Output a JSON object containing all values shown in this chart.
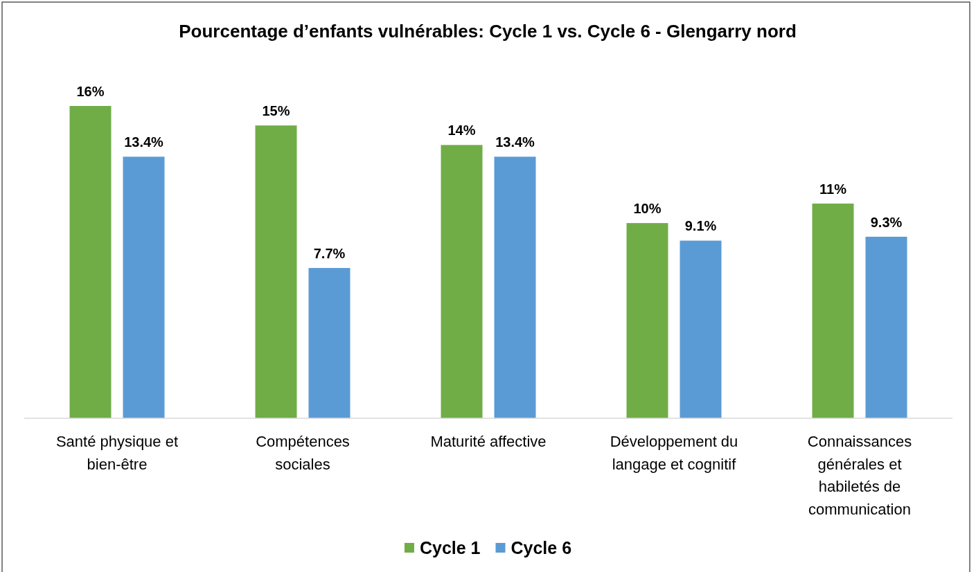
{
  "chart_data": {
    "type": "bar",
    "title": "Pourcentage d’enfants vulnérables: Cycle 1 vs. Cycle 6 - Glengarry nord",
    "categories": [
      "Santé physique et bien-être",
      "Compétences sociales",
      "Maturité affective",
      "Développement du langage et cognitif",
      "Connaissances générales et habiletés de communication"
    ],
    "series": [
      {
        "name": "Cycle 1",
        "color": "#70ad47",
        "values": [
          16,
          15,
          14,
          10,
          11
        ],
        "value_labels": [
          "16%",
          "15%",
          "14%",
          "10%",
          "11%"
        ]
      },
      {
        "name": "Cycle 6",
        "color": "#5b9bd5",
        "values": [
          13.4,
          7.7,
          13.4,
          9.1,
          9.3
        ],
        "value_labels": [
          "13.4%",
          "7.7%",
          "13.4%",
          "9.1%",
          "9.3%"
        ]
      }
    ],
    "legend": "bottom"
  }
}
